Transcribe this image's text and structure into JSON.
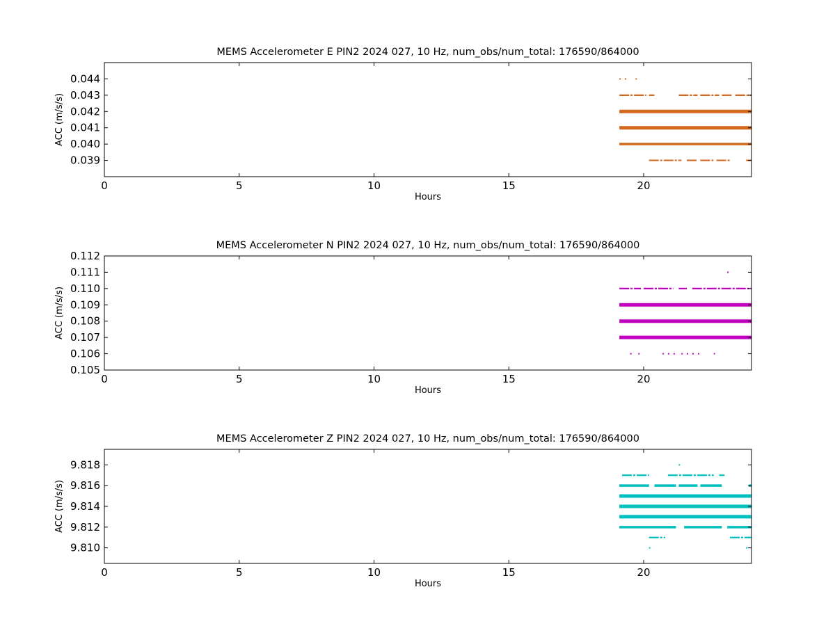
{
  "chart_data": [
    {
      "type": "scatter",
      "title": "MEMS Accelerometer E PIN2 2024 027, 10 Hz, num_obs/num_total: 176590/864000",
      "xlabel": "Hours",
      "ylabel": "ACC (m/s/s)",
      "xlim": [
        0,
        24
      ],
      "ylim": [
        0.038,
        0.045
      ],
      "xticks": [
        "0",
        "5",
        "10",
        "15",
        "20"
      ],
      "yticks": [
        "0.039",
        "0.040",
        "0.041",
        "0.042",
        "0.043",
        "0.044"
      ],
      "color": "#d2691e",
      "grid": false,
      "levels": [
        {
          "y": 0.044,
          "segments": [
            [
              19.1,
              19.2
            ],
            [
              19.3,
              19.4
            ],
            [
              19.7,
              19.8
            ]
          ],
          "weight": "sparse"
        },
        {
          "y": 0.043,
          "segments": [
            [
              19.1,
              20.1
            ],
            [
              20.2,
              20.4
            ],
            [
              21.3,
              22.0
            ],
            [
              22.1,
              22.8
            ],
            [
              22.9,
              23.3
            ],
            [
              23.4,
              24.0
            ]
          ],
          "weight": "light"
        },
        {
          "y": 0.042,
          "segments": [
            [
              19.1,
              24.0
            ]
          ],
          "weight": "heavy"
        },
        {
          "y": 0.041,
          "segments": [
            [
              19.1,
              24.0
            ]
          ],
          "weight": "heavy"
        },
        {
          "y": 0.04,
          "segments": [
            [
              19.1,
              24.0
            ]
          ],
          "weight": "medium"
        },
        {
          "y": 0.039,
          "segments": [
            [
              20.2,
              21.4
            ],
            [
              21.6,
              22.0
            ],
            [
              22.1,
              22.6
            ],
            [
              22.7,
              23.2
            ],
            [
              23.8,
              24.0
            ]
          ],
          "weight": "light"
        }
      ]
    },
    {
      "type": "scatter",
      "title": "MEMS Accelerometer N PIN2 2024 027, 10 Hz, num_obs/num_total: 176590/864000",
      "xlabel": "Hours",
      "ylabel": "ACC (m/s/s)",
      "xlim": [
        0,
        24
      ],
      "ylim": [
        0.105,
        0.112
      ],
      "xticks": [
        "0",
        "5",
        "10",
        "15",
        "20"
      ],
      "yticks": [
        "0.105",
        "0.106",
        "0.107",
        "0.108",
        "0.109",
        "0.110",
        "0.111",
        "0.112"
      ],
      "color": "#bf00bf",
      "grid": false,
      "levels": [
        {
          "y": 0.111,
          "segments": [
            [
              23.1,
              23.15
            ]
          ],
          "weight": "sparse"
        },
        {
          "y": 0.11,
          "segments": [
            [
              19.1,
              19.9
            ],
            [
              20.0,
              21.1
            ],
            [
              21.3,
              21.6
            ],
            [
              21.8,
              24.0
            ]
          ],
          "weight": "light"
        },
        {
          "y": 0.109,
          "segments": [
            [
              19.1,
              24.0
            ]
          ],
          "weight": "heavy"
        },
        {
          "y": 0.108,
          "segments": [
            [
              19.1,
              24.0
            ]
          ],
          "weight": "heavy"
        },
        {
          "y": 0.107,
          "segments": [
            [
              19.1,
              24.0
            ]
          ],
          "weight": "heavy"
        },
        {
          "y": 0.106,
          "segments": [
            [
              19.5,
              19.6
            ],
            [
              19.8,
              19.9
            ],
            [
              20.7,
              20.8
            ],
            [
              20.9,
              21.2
            ],
            [
              21.4,
              21.5
            ],
            [
              21.6,
              22.1
            ],
            [
              22.6,
              22.65
            ]
          ],
          "weight": "sparse"
        }
      ]
    },
    {
      "type": "scatter",
      "title": "MEMS Accelerometer Z PIN2 2024 027, 10 Hz, num_obs/num_total: 176590/864000",
      "xlabel": "Hours",
      "ylabel": "ACC (m/s/s)",
      "xlim": [
        0,
        24
      ],
      "ylim": [
        9.8085,
        9.8195
      ],
      "xticks": [
        "0",
        "5",
        "10",
        "15",
        "20"
      ],
      "yticks": [
        "9.810",
        "9.812",
        "9.814",
        "9.816",
        "9.818"
      ],
      "color": "#00bfbf",
      "grid": false,
      "levels": [
        {
          "y": 9.818,
          "segments": [
            [
              21.3,
              21.35
            ]
          ],
          "weight": "sparse"
        },
        {
          "y": 9.817,
          "segments": [
            [
              19.2,
              20.2
            ],
            [
              20.9,
              22.6
            ],
            [
              22.8,
              23.0
            ]
          ],
          "weight": "light"
        },
        {
          "y": 9.816,
          "segments": [
            [
              19.1,
              20.2
            ],
            [
              20.4,
              21.2
            ],
            [
              21.3,
              22.0
            ],
            [
              22.1,
              22.9
            ],
            [
              23.9,
              24.0
            ]
          ],
          "weight": "medium"
        },
        {
          "y": 9.815,
          "segments": [
            [
              19.1,
              24.0
            ]
          ],
          "weight": "heavy"
        },
        {
          "y": 9.814,
          "segments": [
            [
              19.1,
              24.0
            ]
          ],
          "weight": "heavy"
        },
        {
          "y": 9.813,
          "segments": [
            [
              19.1,
              24.0
            ]
          ],
          "weight": "heavy"
        },
        {
          "y": 9.812,
          "segments": [
            [
              19.1,
              21.2
            ],
            [
              21.5,
              22.9
            ],
            [
              23.1,
              24.0
            ]
          ],
          "weight": "medium"
        },
        {
          "y": 9.811,
          "segments": [
            [
              20.2,
              20.8
            ],
            [
              23.2,
              24.0
            ]
          ],
          "weight": "light"
        },
        {
          "y": 9.81,
          "segments": [
            [
              20.2,
              20.25
            ],
            [
              23.8,
              24.0
            ]
          ],
          "weight": "sparse"
        }
      ]
    }
  ]
}
